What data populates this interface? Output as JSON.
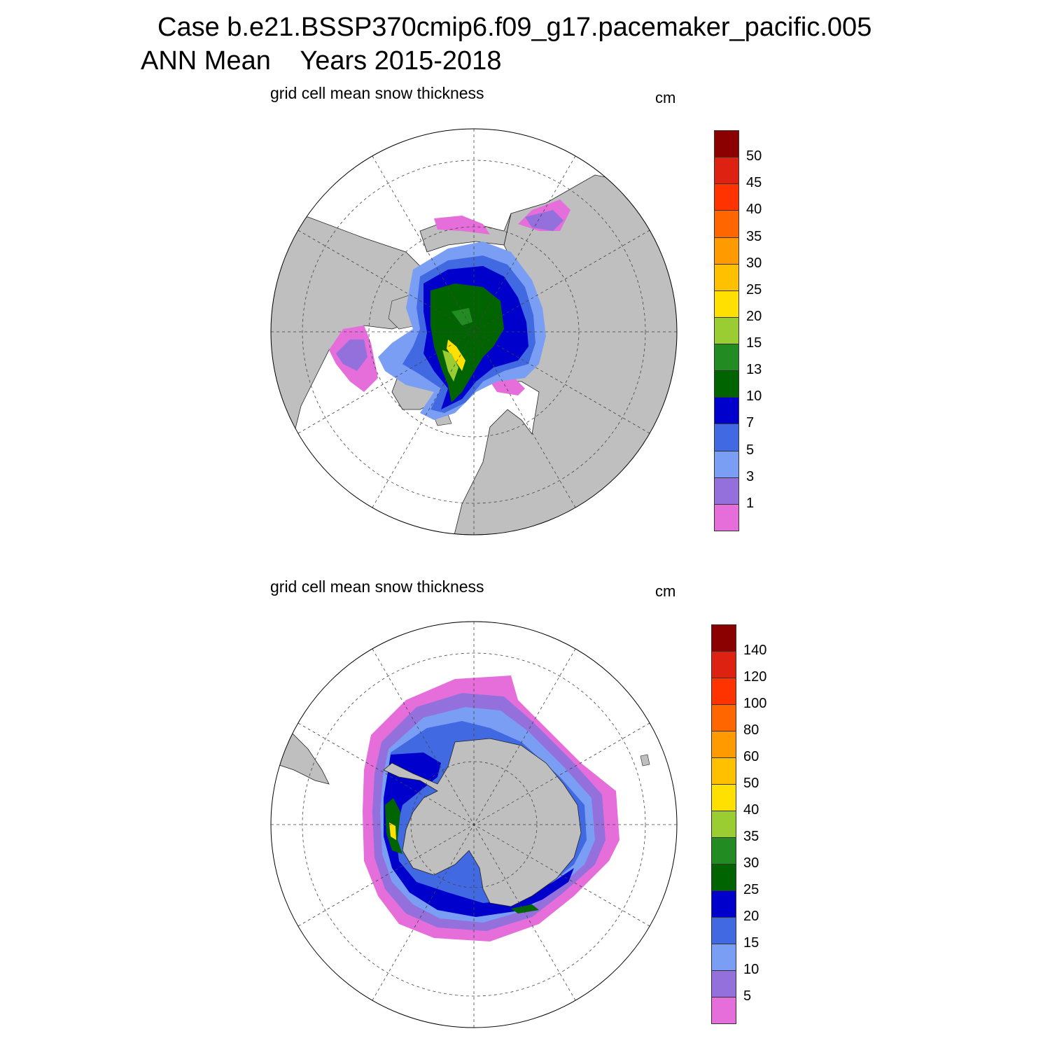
{
  "header": {
    "title": "Case b.e21.BSSP370cmip6.f09_g17.pacemaker_pacific.005",
    "subtitle_left": "ANN Mean",
    "subtitle_right": "Years 2015-2018"
  },
  "colors": {
    "land": "#bfbfbf",
    "ocean": "#ffffff",
    "palette": [
      "#e56edb",
      "#9370db",
      "#7b9ef5",
      "#4169e1",
      "#0000cd",
      "#006400",
      "#228b22",
      "#9acd32",
      "#ffe000",
      "#ffc000",
      "#ff9a00",
      "#ff6600",
      "#ff3300",
      "#dd2211",
      "#8b0000"
    ]
  },
  "north": {
    "label": "grid cell mean snow thickness",
    "units": "cm",
    "colorbar_ticks": [
      "1",
      "3",
      "5",
      "7",
      "10",
      "13",
      "15",
      "20",
      "25",
      "30",
      "35",
      "40",
      "45",
      "50"
    ]
  },
  "south": {
    "label": "grid cell mean snow thickness",
    "units": "cm",
    "colorbar_ticks": [
      "5",
      "10",
      "15",
      "20",
      "25",
      "30",
      "35",
      "40",
      "50",
      "60",
      "80",
      "100",
      "120",
      "140"
    ]
  }
}
